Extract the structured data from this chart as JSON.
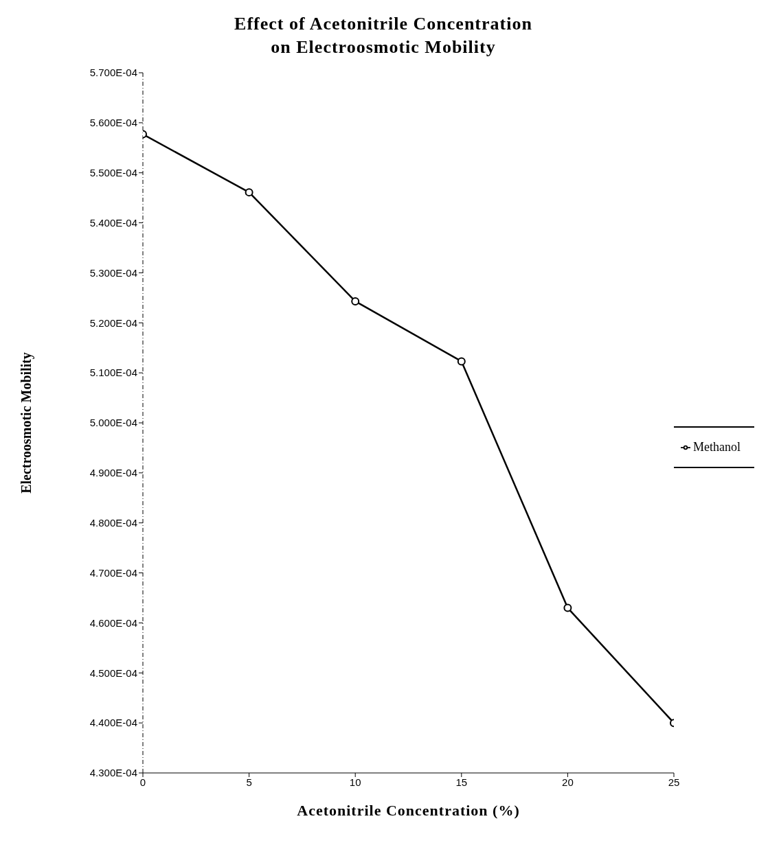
{
  "chart_data": {
    "type": "line",
    "title": "Effect of Acetonitrile Concentration\non Electroosmotic Mobility",
    "xlabel": "Acetonitrile Concentration (%)",
    "ylabel": "Electroosmotic Mobility",
    "x": [
      0,
      5,
      10,
      15,
      20,
      25
    ],
    "series": [
      {
        "name": "Methanol",
        "color": "#000000",
        "values": [
          0.0005577,
          0.0005461,
          0.0005243,
          0.0005123,
          0.000463,
          0.00044
        ]
      }
    ],
    "xlim": [
      0,
      25
    ],
    "xticks": [
      0,
      5,
      10,
      15,
      20,
      25
    ],
    "ylim": [
      0.00043,
      0.00057
    ],
    "yticks": [
      {
        "value": 0.00043,
        "label": "4.300E-04"
      },
      {
        "value": 0.00044,
        "label": "4.400E-04"
      },
      {
        "value": 0.00045,
        "label": "4.500E-04"
      },
      {
        "value": 0.00046,
        "label": "4.600E-04"
      },
      {
        "value": 0.00047,
        "label": "4.700E-04"
      },
      {
        "value": 0.00048,
        "label": "4.800E-04"
      },
      {
        "value": 0.00049,
        "label": "4.900E-04"
      },
      {
        "value": 0.0005,
        "label": "5.000E-04"
      },
      {
        "value": 0.00051,
        "label": "5.100E-04"
      },
      {
        "value": 0.00052,
        "label": "5.200E-04"
      },
      {
        "value": 0.00053,
        "label": "5.300E-04"
      },
      {
        "value": 0.00054,
        "label": "5.400E-04"
      },
      {
        "value": 0.00055,
        "label": "5.500E-04"
      },
      {
        "value": 0.00056,
        "label": "5.600E-04"
      },
      {
        "value": 0.00057,
        "label": "5.700E-04"
      }
    ],
    "grid": false,
    "legend": "right",
    "marker": "circle",
    "line_style": "solid"
  }
}
